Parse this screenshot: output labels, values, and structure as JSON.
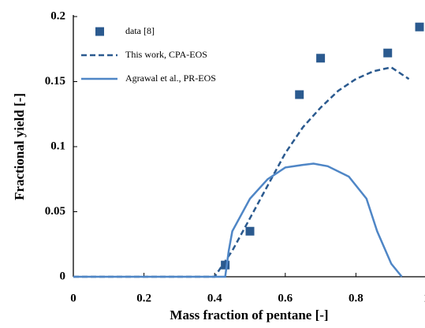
{
  "chart_data": {
    "type": "line",
    "xlabel": "Mass fraction of pentane [-]",
    "ylabel": "Fractional yield [-]",
    "xlim": [
      0,
      1
    ],
    "xticks": [
      0,
      0.2,
      0.4,
      0.6,
      0.8,
      1
    ],
    "ylim": [
      0,
      0.2
    ],
    "yticks": [
      0,
      0.05,
      0.1,
      0.15,
      0.2
    ],
    "legend": "upper left",
    "series": [
      {
        "name": "data [8]",
        "color": "#2b5a8f",
        "style": "markers",
        "x": [
          0.43,
          0.5,
          0.64,
          0.7,
          0.89,
          0.98
        ],
        "values": [
          0.009,
          0.035,
          0.14,
          0.168,
          0.172,
          0.192
        ]
      },
      {
        "name": "This work, CPA-EOS",
        "color": "#2b5a8f",
        "style": "dashed",
        "x": [
          0,
          0.33,
          0.4,
          0.45,
          0.5,
          0.55,
          0.6,
          0.65,
          0.7,
          0.75,
          0.8,
          0.85,
          0.9,
          0.95
        ],
        "values": [
          0,
          0,
          0,
          0.02,
          0.045,
          0.07,
          0.095,
          0.115,
          0.13,
          0.143,
          0.152,
          0.158,
          0.161,
          0.152
        ]
      },
      {
        "name": "Agrawal et al., PR-EOS",
        "color": "#4f86c6",
        "style": "solid",
        "x": [
          0,
          0.33,
          0.43,
          0.44,
          0.45,
          0.5,
          0.55,
          0.6,
          0.65,
          0.68,
          0.72,
          0.78,
          0.83,
          0.86,
          0.9,
          0.93
        ],
        "values": [
          0,
          0,
          0,
          0.02,
          0.035,
          0.06,
          0.075,
          0.084,
          0.086,
          0.087,
          0.085,
          0.077,
          0.06,
          0.035,
          0.01,
          0
        ]
      }
    ]
  }
}
